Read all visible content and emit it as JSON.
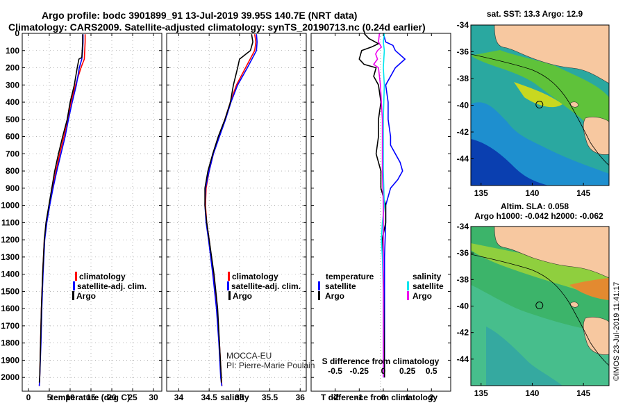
{
  "header": {
    "line1": "Argo profile: bodc 3901899_91 13-Jul-2019 39.95S 140.7E (NRT data)",
    "line2": "Climatology: CARS2009. Satellite-adjusted climatology: synTS_20190713.nc (0.24d earlier)"
  },
  "colors": {
    "climatology": "#ff0000",
    "satellite": "#0000ff",
    "argo": "#000000",
    "salinity_sat": "#00e5ee",
    "salinity_argo": "#ee00ee",
    "land": "#f7c8a0"
  },
  "depth_axis": {
    "ticks": [
      0,
      100,
      200,
      300,
      400,
      500,
      600,
      700,
      800,
      900,
      1000,
      1100,
      1200,
      1300,
      1400,
      1500,
      1600,
      1700,
      1800,
      1900,
      2000
    ],
    "ylim": [
      0,
      2080
    ]
  },
  "chart_data": [
    {
      "type": "line",
      "id": "temperature",
      "xlabel": "temperature (deg C)",
      "xlim": [
        -1.5,
        32
      ],
      "xticks": [
        0,
        5,
        10,
        15,
        20,
        25,
        30
      ],
      "grid": true,
      "legend": [
        "climatology",
        "satellite-adj. clim.",
        "Argo"
      ],
      "series": [
        {
          "name": "climatology",
          "color": "#ff0000",
          "depth": [
            5,
            50,
            100,
            150,
            200,
            300,
            400,
            500,
            600,
            700,
            800,
            900,
            1000,
            1100,
            1200,
            1400,
            1600,
            1800,
            2000,
            2050
          ],
          "values": [
            13.6,
            13.6,
            13.5,
            13.4,
            12.6,
            11.3,
            10.2,
            9.4,
            8.5,
            7.5,
            6.6,
            5.8,
            5.0,
            4.3,
            3.8,
            3.4,
            3.1,
            2.9,
            2.7,
            2.6
          ]
        },
        {
          "name": "satellite-adj. clim.",
          "color": "#0000ff",
          "depth": [
            5,
            50,
            100,
            150,
            200,
            300,
            400,
            500,
            600,
            700,
            800,
            900,
            1000,
            1100,
            1200,
            1400,
            1600,
            1800,
            2000,
            2050
          ],
          "values": [
            13.1,
            13.1,
            13.0,
            12.8,
            12.2,
            11.5,
            10.5,
            9.6,
            8.8,
            7.8,
            6.8,
            5.9,
            5.1,
            4.4,
            3.9,
            3.5,
            3.2,
            3.0,
            2.7,
            2.6
          ]
        },
        {
          "name": "Argo",
          "color": "#000000",
          "depth": [
            5,
            50,
            100,
            140,
            150,
            200,
            300,
            400,
            500,
            600,
            700,
            800,
            900,
            1000,
            1100,
            1200,
            1400,
            1600,
            1800,
            2000,
            2030
          ],
          "values": [
            13.0,
            13.0,
            12.9,
            12.8,
            12.1,
            11.7,
            11.0,
            10.0,
            9.3,
            8.2,
            7.2,
            6.3,
            5.6,
            4.9,
            4.2,
            3.8,
            3.4,
            3.1,
            2.9,
            2.7,
            2.6
          ]
        }
      ]
    },
    {
      "type": "line",
      "id": "salinity",
      "xlabel": "salinity",
      "xlim": [
        33.8,
        36.1
      ],
      "xticks": [
        34,
        34.5,
        35,
        35.5,
        36
      ],
      "grid": true,
      "legend": [
        "climatology",
        "satellite-adj. clim.",
        "Argo"
      ],
      "annotations": [
        "MOCCA-EU",
        "PI: Pierre-Marie Poulain"
      ],
      "series": [
        {
          "name": "climatology",
          "color": "#ff0000",
          "depth": [
            5,
            50,
            100,
            200,
            300,
            400,
            500,
            600,
            700,
            800,
            900,
            1000,
            1100,
            1200,
            1400,
            1600,
            1800,
            2000,
            2050
          ],
          "values": [
            35.25,
            35.27,
            35.25,
            35.1,
            34.95,
            34.85,
            34.76,
            34.66,
            34.57,
            34.5,
            34.45,
            34.44,
            34.46,
            34.5,
            34.57,
            34.63,
            34.67,
            34.7,
            34.71
          ]
        },
        {
          "name": "satellite-adj. clim.",
          "color": "#0000ff",
          "depth": [
            5,
            50,
            100,
            200,
            300,
            400,
            500,
            600,
            700,
            800,
            900,
            1000,
            1100,
            1200,
            1400,
            1600,
            1800,
            2000,
            2050
          ],
          "values": [
            35.28,
            35.29,
            35.28,
            35.13,
            34.97,
            34.86,
            34.77,
            34.67,
            34.57,
            34.5,
            34.44,
            34.43,
            34.45,
            34.49,
            34.56,
            34.62,
            34.66,
            34.69,
            34.71
          ]
        },
        {
          "name": "Argo",
          "color": "#000000",
          "depth": [
            5,
            50,
            100,
            150,
            200,
            300,
            400,
            500,
            600,
            700,
            800,
            900,
            1000,
            1100,
            1200,
            1400,
            1600,
            1800,
            2000,
            2030
          ],
          "values": [
            35.2,
            35.22,
            35.18,
            35.0,
            34.97,
            34.9,
            34.85,
            34.76,
            34.65,
            34.56,
            34.48,
            34.43,
            34.43,
            34.46,
            34.5,
            34.58,
            34.64,
            34.67,
            34.7,
            34.7
          ]
        }
      ]
    },
    {
      "type": "line",
      "id": "difference",
      "xlabel": "T difference from climatology",
      "xlim": [
        -3,
        2.8
      ],
      "xticks": [
        -2,
        -1,
        0,
        1,
        2
      ],
      "top_label": "S difference from climatology",
      "top_ticks": [
        "-0.5",
        "-0.25",
        "0",
        "0.25",
        "0.5"
      ],
      "legend_left_title": "temperature",
      "legend_right_title": "salinity",
      "legend_left": [
        "satellite",
        "Argo"
      ],
      "legend_right": [
        "satellite",
        "Argo"
      ],
      "series": [
        {
          "name": "temperature satellite",
          "color": "#0000ff",
          "depth": [
            0,
            50,
            70,
            100,
            150,
            200,
            300,
            400,
            500,
            600,
            650,
            700,
            750,
            800,
            850,
            900,
            1000,
            1100,
            1300,
            1600,
            2000
          ],
          "values": [
            0,
            0.1,
            0.4,
            0.5,
            0.9,
            0.5,
            0.1,
            0.2,
            0.2,
            0.3,
            0.3,
            0.5,
            0.7,
            0.8,
            0.6,
            0.3,
            0.1,
            0.1,
            0.05,
            0.05,
            0.05
          ]
        },
        {
          "name": "temperature Argo",
          "color": "#000000",
          "depth": [
            0,
            30,
            60,
            80,
            100,
            150,
            180,
            200,
            250,
            300,
            400,
            500,
            600,
            700,
            800,
            900,
            950,
            1000,
            1100,
            1200,
            1400,
            2000
          ],
          "values": [
            -0.8,
            -0.6,
            -0.2,
            -0.5,
            -0.9,
            -1.0,
            -0.8,
            -0.3,
            -0.4,
            -0.2,
            -0.1,
            -0.2,
            -0.2,
            -0.3,
            -0.1,
            -0.1,
            0,
            0.1,
            0.1,
            -0.05,
            0,
            0.05
          ]
        },
        {
          "name": "salinity satellite",
          "color": "#00e5ee",
          "depth": [
            0,
            50,
            100,
            200,
            300,
            500,
            800,
            1000,
            1100,
            1200,
            1300,
            1500,
            2000
          ],
          "values": [
            0.01,
            0.0,
            0.01,
            0.0,
            0.01,
            0.0,
            0.0,
            0.01,
            -0.01,
            -0.02,
            -0.01,
            0,
            0
          ]
        },
        {
          "name": "salinity Argo",
          "color": "#ee00ee",
          "depth": [
            0,
            50,
            80,
            100,
            120,
            150,
            180,
            200,
            300,
            400,
            500,
            800,
            1000,
            1500,
            2000
          ],
          "values": [
            -0.04,
            -0.05,
            -0.02,
            -0.06,
            -0.08,
            -0.06,
            -0.1,
            -0.05,
            -0.03,
            -0.02,
            -0.01,
            -0.01,
            0,
            0,
            0
          ]
        }
      ]
    }
  ],
  "maps": [
    {
      "id": "sst-map",
      "title": "sat. SST: 13.3 Argo: 12.9",
      "xticks": [
        135,
        140,
        145
      ],
      "yticks": [
        -34,
        -36,
        -38,
        -40,
        -42,
        -44
      ],
      "lon": [
        134,
        147.5
      ],
      "lat": [
        -34,
        -46
      ],
      "float": {
        "lon": 140.7,
        "lat": -39.95
      }
    },
    {
      "id": "sla-map",
      "title": "Altim. SLA: 0.058",
      "subtitle": "Argo h1000: -0.042 h2000: -0.062",
      "xticks": [
        135,
        140,
        145
      ],
      "yticks": [
        -34,
        -36,
        -38,
        -40,
        -42,
        -44
      ],
      "lon": [
        134,
        147.5
      ],
      "lat": [
        -34,
        -46
      ],
      "float": {
        "lon": 140.7,
        "lat": -39.95
      }
    }
  ],
  "credit": "©IMOS 23-Jul-2019 11:41:17"
}
